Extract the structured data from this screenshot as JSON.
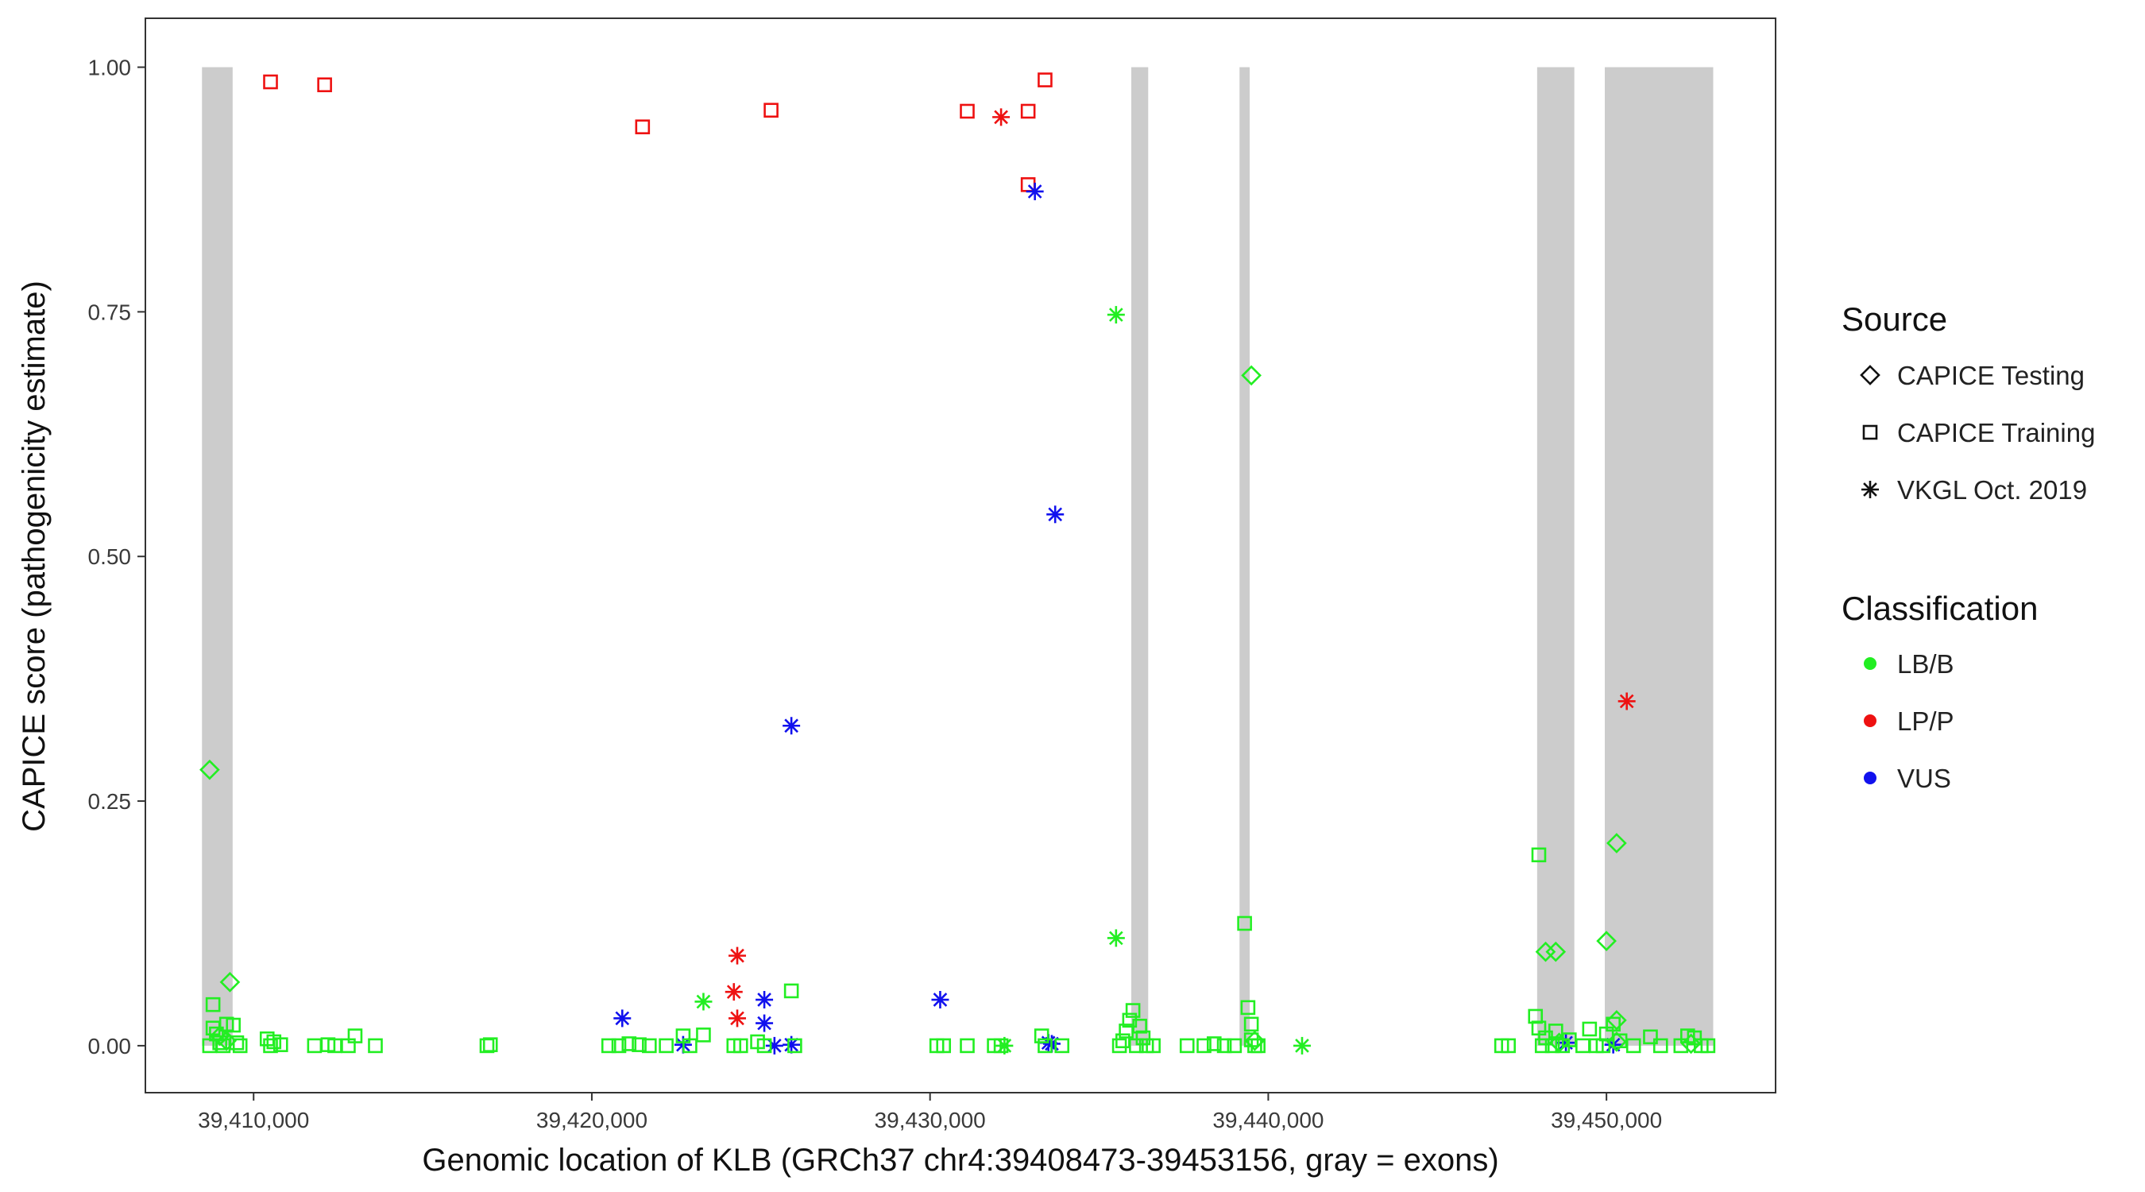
{
  "chart_data": {
    "type": "scatter",
    "title": "",
    "xlabel": "Genomic location of KLB (GRCh37 chr4:39408473-39453156, gray = exons)",
    "ylabel": "CAPICE score (pathogenicity estimate)",
    "xlim": [
      39406800,
      39455000
    ],
    "ylim": [
      -0.048,
      1.05
    ],
    "x_ticks": [
      39410000,
      39420000,
      39430000,
      39440000,
      39450000
    ],
    "x_tick_labels": [
      "39,410,000",
      "39,420,000",
      "39,430,000",
      "39,440,000",
      "39,450,000"
    ],
    "y_ticks": [
      0,
      0.25,
      0.5,
      0.75,
      1.0
    ],
    "y_tick_labels": [
      "0.00",
      "0.25",
      "0.50",
      "0.75",
      "1.00"
    ],
    "grid": false,
    "exons": [
      [
        39408473,
        39409380
      ],
      [
        39435950,
        39436450
      ],
      [
        39439150,
        39439450
      ],
      [
        39447950,
        39449050
      ],
      [
        39449950,
        39453156
      ]
    ],
    "exon_color": "#cccccc",
    "shapes": {
      "CAPICE Testing": "diamond",
      "CAPICE Training": "square",
      "VKGL Oct. 2019": "asterisk"
    },
    "colors": {
      "LB/B": "#22ee22",
      "LP/P": "#ee1111",
      "VUS": "#1111ee"
    },
    "legend": {
      "placement": "right",
      "source_title": "Source",
      "source_items": [
        "CAPICE Testing",
        "CAPICE Training",
        "VKGL Oct. 2019"
      ],
      "class_title": "Classification",
      "class_items": [
        "LB/B",
        "LP/P",
        "VUS"
      ]
    },
    "series": [
      {
        "source": "CAPICE Training",
        "classification": "LP/P",
        "points": [
          [
            39410500,
            0.985
          ],
          [
            39412100,
            0.982
          ],
          [
            39421500,
            0.939
          ],
          [
            39425300,
            0.956
          ],
          [
            39431100,
            0.955
          ],
          [
            39432900,
            0.955
          ],
          [
            39433400,
            0.987
          ],
          [
            39432900,
            0.88
          ]
        ]
      },
      {
        "source": "VKGL Oct. 2019",
        "classification": "LP/P",
        "points": [
          [
            39432100,
            0.949
          ],
          [
            39424300,
            0.092
          ],
          [
            39424200,
            0.055
          ],
          [
            39424300,
            0.028
          ],
          [
            39450600,
            0.352
          ]
        ]
      },
      {
        "source": "VKGL Oct. 2019",
        "classification": "VUS",
        "points": [
          [
            39433100,
            0.873
          ],
          [
            39433700,
            0.543
          ],
          [
            39425900,
            0.327
          ],
          [
            39420900,
            0.028
          ],
          [
            39422700,
            0.001
          ],
          [
            39425100,
            0.047
          ],
          [
            39425100,
            0.023
          ],
          [
            39425400,
            0.0
          ],
          [
            39425900,
            0.001
          ],
          [
            39430300,
            0.047
          ],
          [
            39433500,
            0.003
          ],
          [
            39433600,
            0.002
          ],
          [
            39448800,
            0.003
          ],
          [
            39450200,
            0.001
          ]
        ]
      },
      {
        "source": "VKGL Oct. 2019",
        "classification": "LB/B",
        "points": [
          [
            39435500,
            0.747
          ],
          [
            39435500,
            0.11
          ],
          [
            39423300,
            0.045
          ],
          [
            39432200,
            0.0
          ],
          [
            39441000,
            0.0
          ]
        ]
      },
      {
        "source": "CAPICE Testing",
        "classification": "LB/B",
        "points": [
          [
            39408700,
            0.282
          ],
          [
            39409300,
            0.065
          ],
          [
            39439500,
            0.685
          ],
          [
            39448200,
            0.096
          ],
          [
            39448500,
            0.096
          ],
          [
            39450000,
            0.107
          ],
          [
            39450300,
            0.207
          ],
          [
            39450300,
            0.026
          ],
          [
            39409000,
            0.01
          ],
          [
            39409200,
            0.005
          ],
          [
            39439600,
            0.005
          ],
          [
            39448600,
            0.003
          ],
          [
            39450300,
            0.004
          ],
          [
            39452500,
            0.002
          ]
        ]
      },
      {
        "source": "CAPICE Training",
        "classification": "LB/B",
        "points": [
          [
            39408700,
            0.0
          ],
          [
            39408800,
            0.018
          ],
          [
            39408800,
            0.042
          ],
          [
            39408900,
            0.012
          ],
          [
            39409000,
            0.003
          ],
          [
            39409100,
            0.0
          ],
          [
            39409200,
            0.022
          ],
          [
            39409400,
            0.021
          ],
          [
            39409500,
            0.003
          ],
          [
            39409600,
            0.0
          ],
          [
            39410400,
            0.007
          ],
          [
            39410500,
            0.0
          ],
          [
            39410600,
            0.004
          ],
          [
            39410800,
            0.001
          ],
          [
            39411800,
            0.0
          ],
          [
            39412200,
            0.001
          ],
          [
            39412400,
            0.0
          ],
          [
            39412800,
            0.0
          ],
          [
            39413000,
            0.01
          ],
          [
            39413600,
            0.0
          ],
          [
            39416900,
            0.0
          ],
          [
            39417000,
            0.001
          ],
          [
            39420500,
            0.0
          ],
          [
            39420800,
            0.0
          ],
          [
            39421100,
            0.002
          ],
          [
            39421400,
            0.001
          ],
          [
            39421700,
            0.0
          ],
          [
            39422200,
            0.0
          ],
          [
            39422700,
            0.01
          ],
          [
            39422900,
            0.0
          ],
          [
            39423300,
            0.011
          ],
          [
            39424200,
            0.0
          ],
          [
            39424400,
            0.0
          ],
          [
            39424900,
            0.004
          ],
          [
            39425100,
            0.0
          ],
          [
            39425900,
            0.056
          ],
          [
            39426000,
            0.0
          ],
          [
            39430200,
            0.0
          ],
          [
            39430400,
            0.0
          ],
          [
            39431100,
            0.0
          ],
          [
            39431900,
            0.0
          ],
          [
            39432100,
            0.0
          ],
          [
            39433300,
            0.01
          ],
          [
            39433400,
            0.0
          ],
          [
            39433900,
            0.0
          ],
          [
            39435600,
            0.0
          ],
          [
            39435700,
            0.005
          ],
          [
            39435800,
            0.015
          ],
          [
            39435900,
            0.026
          ],
          [
            39436000,
            0.036
          ],
          [
            39436100,
            0.0
          ],
          [
            39436200,
            0.02
          ],
          [
            39436300,
            0.008
          ],
          [
            39436400,
            0.0
          ],
          [
            39436600,
            0.0
          ],
          [
            39437600,
            0.0
          ],
          [
            39438100,
            0.0
          ],
          [
            39438400,
            0.002
          ],
          [
            39438700,
            0.0
          ],
          [
            39439000,
            0.0
          ],
          [
            39439300,
            0.125
          ],
          [
            39439400,
            0.039
          ],
          [
            39439500,
            0.022
          ],
          [
            39439500,
            0.006
          ],
          [
            39439600,
            0.0
          ],
          [
            39439700,
            0.0
          ],
          [
            39446900,
            0.0
          ],
          [
            39447100,
            0.0
          ],
          [
            39447900,
            0.03
          ],
          [
            39448000,
            0.018
          ],
          [
            39448100,
            0.0
          ],
          [
            39448200,
            0.008
          ],
          [
            39448400,
            0.0
          ],
          [
            39448500,
            0.015
          ],
          [
            39448700,
            0.0
          ],
          [
            39448900,
            0.006
          ],
          [
            39449300,
            0.0
          ],
          [
            39449500,
            0.017
          ],
          [
            39449700,
            0.0
          ],
          [
            39449900,
            0.0
          ],
          [
            39450000,
            0.012
          ],
          [
            39450200,
            0.022
          ],
          [
            39450400,
            0.005
          ],
          [
            39450800,
            0.0
          ],
          [
            39451300,
            0.009
          ],
          [
            39451600,
            0.0
          ],
          [
            39452200,
            0.0
          ],
          [
            39452400,
            0.01
          ],
          [
            39452600,
            0.008
          ],
          [
            39452800,
            0.0
          ],
          [
            39453000,
            0.0
          ],
          [
            39448000,
            0.195
          ]
        ]
      }
    ]
  }
}
